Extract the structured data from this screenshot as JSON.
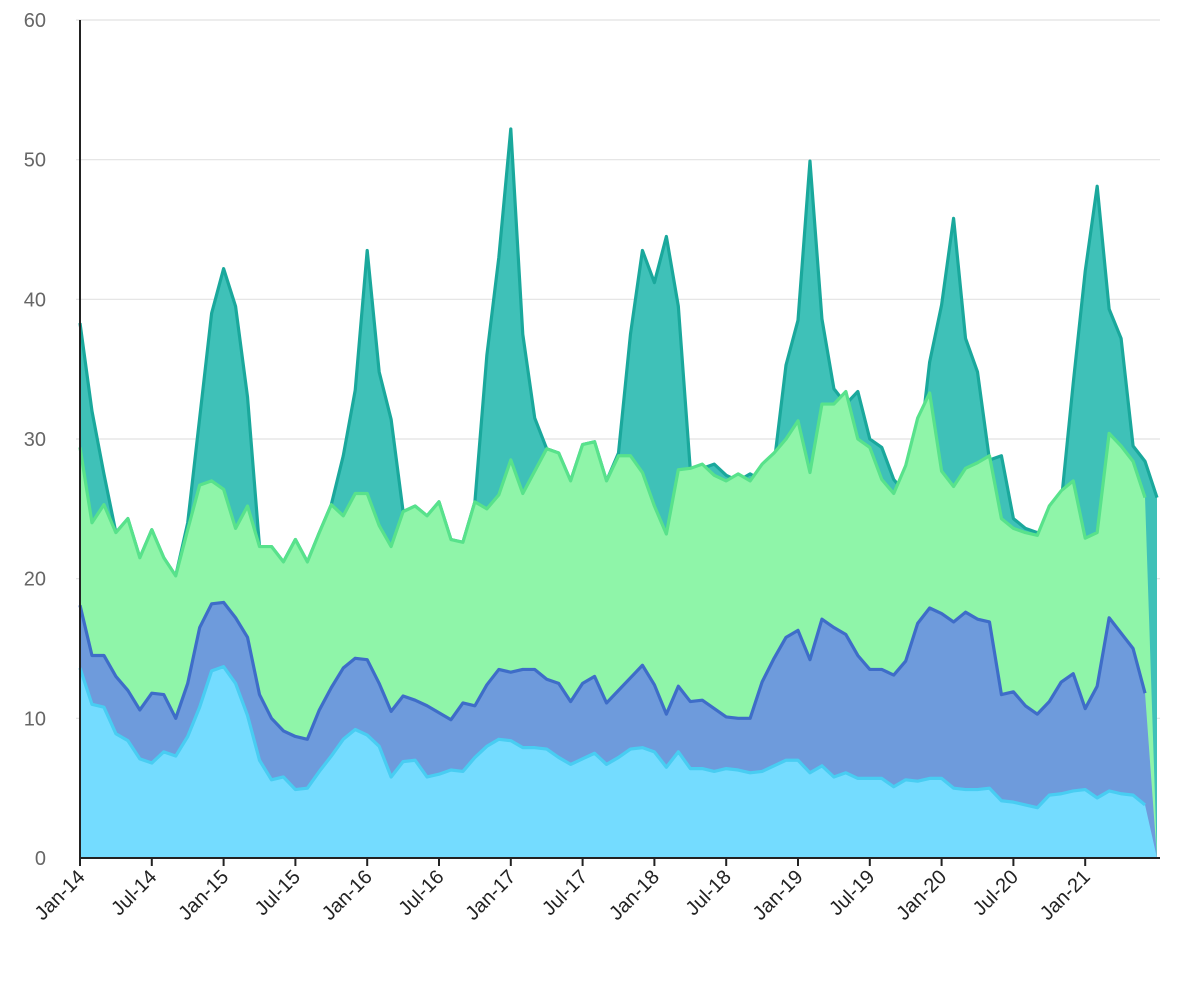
{
  "chart_data": {
    "type": "area",
    "stacked": false,
    "grid": true,
    "legend": "none",
    "ylim": [
      0,
      60
    ],
    "yticks": [
      0,
      10,
      20,
      30,
      40,
      50,
      60
    ],
    "x_start": "Jan-14",
    "x_tick_labels": [
      "Jan-14",
      "Jul-14",
      "Jan-15",
      "Jul-15",
      "Jan-16",
      "Jul-16",
      "Jan-17",
      "Jul-17",
      "Jan-18",
      "Jul-18",
      "Jan-19",
      "Jul-19",
      "Jan-20",
      "Jul-20",
      "Jan-21"
    ],
    "series": [
      {
        "color": "#3fc1b8",
        "line_color": "#1aa89c",
        "values": [
          38.3,
          32.0,
          27.5,
          23.3,
          24.3,
          21.5,
          23.5,
          21.5,
          20.2,
          24.0,
          31.5,
          39.0,
          42.2,
          39.5,
          33.0,
          22.3,
          22.3,
          21.2,
          22.8,
          21.2,
          23.3,
          25.3,
          28.8,
          33.5,
          43.5,
          34.8,
          31.4,
          24.8,
          25.2,
          24.5,
          25.5,
          22.8,
          22.6,
          25.5,
          36.0,
          43.0,
          52.2,
          37.5,
          31.5,
          29.3,
          29.0,
          27.0,
          29.6,
          29.8,
          27.0,
          29.0,
          37.5,
          43.5,
          41.2,
          44.5,
          39.5,
          27.8,
          27.9,
          28.2,
          27.4,
          27.0,
          27.5,
          27.0,
          28.2,
          35.3,
          38.5,
          49.9,
          38.6,
          33.6,
          32.5,
          33.4,
          30.0,
          29.4,
          27.1,
          26.1,
          28.1,
          35.5,
          39.6,
          45.8,
          37.2,
          34.8,
          28.5,
          28.8,
          24.3,
          23.6,
          23.3,
          23.1,
          25.5,
          34.0,
          42.0,
          48.1,
          39.3,
          37.2,
          29.5,
          28.4,
          25.8
        ]
      },
      {
        "color": "#8ff5a9",
        "line_color": "#58e28b",
        "values": [
          29.4,
          24.0,
          25.3,
          23.3,
          24.3,
          21.5,
          23.5,
          21.5,
          20.2,
          23.5,
          26.7,
          27.0,
          26.4,
          23.6,
          25.2,
          22.3,
          22.3,
          21.2,
          22.8,
          21.2,
          23.3,
          25.3,
          24.5,
          26.1,
          26.1,
          23.8,
          22.3,
          24.8,
          25.2,
          24.5,
          25.5,
          22.8,
          22.6,
          25.5,
          25.0,
          26.0,
          28.5,
          26.1,
          27.7,
          29.3,
          29.0,
          27.0,
          29.6,
          29.8,
          27.0,
          28.8,
          28.8,
          27.6,
          25.2,
          23.2,
          27.8,
          27.9,
          28.2,
          27.4,
          27.0,
          27.5,
          27.0,
          28.2,
          29.0,
          30.0,
          31.3,
          27.6,
          32.5,
          32.5,
          33.4,
          30.0,
          29.4,
          27.1,
          26.1,
          28.1,
          31.5,
          33.3,
          27.7,
          26.6,
          27.9,
          28.3,
          28.8,
          24.3,
          23.6,
          23.3,
          23.1,
          25.2,
          26.3,
          27.0,
          22.9,
          23.3,
          30.4,
          29.5,
          28.4,
          25.8
        ]
      },
      {
        "color": "#6e9bdc",
        "line_color": "#3e6dc8",
        "values": [
          18.1,
          14.5,
          14.5,
          13.0,
          12.0,
          10.6,
          11.8,
          11.7,
          10.0,
          12.5,
          16.5,
          18.2,
          18.3,
          17.2,
          15.8,
          11.7,
          10.0,
          9.1,
          8.7,
          8.5,
          10.6,
          12.2,
          13.6,
          14.3,
          14.2,
          12.5,
          10.5,
          11.6,
          11.3,
          10.9,
          10.4,
          9.9,
          11.1,
          10.9,
          12.4,
          13.5,
          13.3,
          13.5,
          13.5,
          12.8,
          12.5,
          11.2,
          12.5,
          13.0,
          11.1,
          12.0,
          12.9,
          13.8,
          12.4,
          10.3,
          12.3,
          11.2,
          11.3,
          10.7,
          10.1,
          10.0,
          10.0,
          12.6,
          14.3,
          15.8,
          16.3,
          14.2,
          17.1,
          16.5,
          16.0,
          14.5,
          13.5,
          13.5,
          13.1,
          14.1,
          16.8,
          17.9,
          17.5,
          16.9,
          17.6,
          17.1,
          16.9,
          11.7,
          11.9,
          10.9,
          10.3,
          11.2,
          12.6,
          13.2,
          10.7,
          12.3,
          17.2,
          16.1,
          15.0,
          11.8
        ]
      },
      {
        "color": "#74dcff",
        "line_color": "#48cdf2",
        "values": [
          13.6,
          11.0,
          10.8,
          8.9,
          8.4,
          7.1,
          6.8,
          7.6,
          7.3,
          8.7,
          10.8,
          13.4,
          13.7,
          12.5,
          10.2,
          7.0,
          5.6,
          5.8,
          4.9,
          5.0,
          6.2,
          7.3,
          8.5,
          9.2,
          8.8,
          8.0,
          5.8,
          6.9,
          7.0,
          5.8,
          6.0,
          6.3,
          6.2,
          7.2,
          8.0,
          8.5,
          8.4,
          7.9,
          7.9,
          7.8,
          7.2,
          6.7,
          7.1,
          7.5,
          6.7,
          7.2,
          7.8,
          7.9,
          7.6,
          6.5,
          7.6,
          6.4,
          6.4,
          6.2,
          6.4,
          6.3,
          6.1,
          6.2,
          6.6,
          7.0,
          7.0,
          6.1,
          6.6,
          5.8,
          6.1,
          5.7,
          5.7,
          5.7,
          5.1,
          5.6,
          5.5,
          5.7,
          5.7,
          5.0,
          4.9,
          4.9,
          5.0,
          4.1,
          4.0,
          3.8,
          3.6,
          4.5,
          4.6,
          4.8,
          4.9,
          4.3,
          4.8,
          4.6,
          4.5,
          3.8
        ]
      }
    ]
  }
}
